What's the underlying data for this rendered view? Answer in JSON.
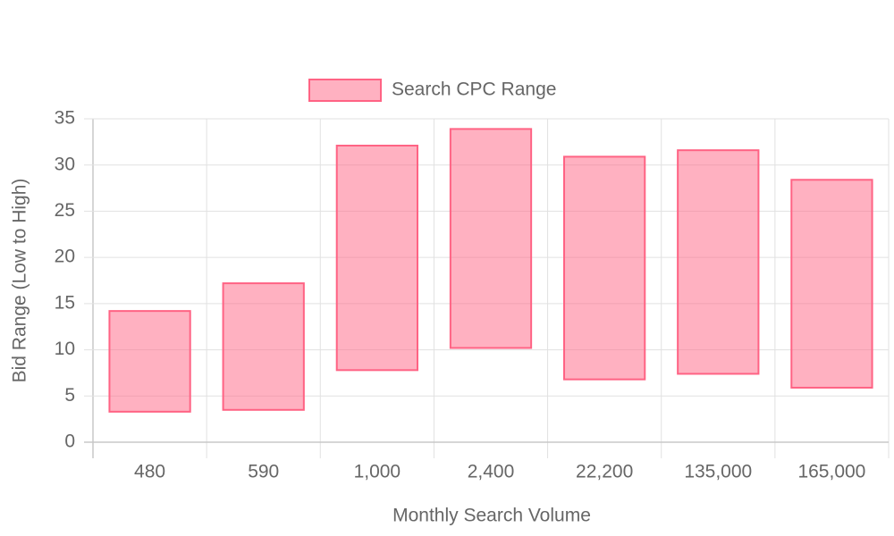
{
  "chart_data": {
    "type": "floating-bar",
    "x_label": "Monthly Search Volume",
    "y_label": "Bid Range (Low to High)",
    "categories": [
      "480",
      "590",
      "1,000",
      "2,400",
      "22,200",
      "135,000",
      "165,000"
    ],
    "series": [
      {
        "name": "Search CPC Range",
        "color": "#ff6384",
        "values": [
          [
            3.3,
            14.2
          ],
          [
            3.5,
            17.2
          ],
          [
            7.8,
            32.1
          ],
          [
            10.2,
            33.9
          ],
          [
            6.8,
            30.9
          ],
          [
            7.4,
            31.6
          ],
          [
            5.9,
            28.4
          ]
        ]
      }
    ],
    "ylim": [
      0,
      35
    ],
    "yticks": [
      0,
      5,
      10,
      15,
      20,
      25,
      30,
      35
    ],
    "grid": true,
    "legend": "top"
  }
}
